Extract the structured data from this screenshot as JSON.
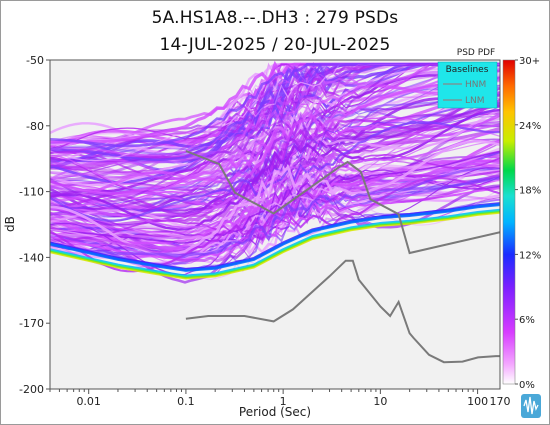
{
  "title": "5A.HS1A8.--.DH3 : 279 PSDs",
  "subtitle": "14-JUL-2025 / 20-JUL-2025",
  "chart_data": {
    "type": "heatmap",
    "xlabel": "Period (Sec)",
    "ylabel": "dB",
    "x_scale": "log",
    "xlim": [
      0.004,
      170
    ],
    "ylim": [
      -200,
      -50
    ],
    "x_ticks": [
      {
        "value": 0.01,
        "label": "0.01"
      },
      {
        "value": 0.1,
        "label": "0.1"
      },
      {
        "value": 1,
        "label": "1"
      },
      {
        "value": 10,
        "label": "10"
      },
      {
        "value": 100,
        "label": "100"
      },
      {
        "value": 170,
        "label": "170"
      }
    ],
    "y_ticks": [
      -50,
      -80,
      -110,
      -140,
      -170,
      -200
    ],
    "colorbar": {
      "title": "PSD PDF",
      "ticks": [
        "0%",
        "6%",
        "12%",
        "18%",
        "24%",
        "30+"
      ]
    },
    "legend": {
      "title": "Baselines",
      "entries": [
        "HNM",
        "LNM"
      ],
      "placement": "top-right"
    },
    "series": [
      {
        "name": "HNM",
        "x": [
          0.1,
          0.22,
          0.32,
          0.8,
          3.8,
          4.6,
          6.3,
          7.9,
          15.4,
          20,
          170
        ],
        "y": [
          -91.5,
          -97.4,
          -110.5,
          -120,
          -98.7,
          -96.5,
          -101,
          -113.5,
          -120.3,
          -138,
          -128.5
        ]
      },
      {
        "name": "LNM",
        "x": [
          0.1,
          0.17,
          0.4,
          0.8,
          1.26,
          3,
          4.4,
          5.2,
          6,
          10,
          12.6,
          15.4,
          20,
          21.9,
          31.6,
          45,
          70,
          101,
          154,
          170
        ],
        "y": [
          -168,
          -166.7,
          -166.7,
          -169.2,
          -163.7,
          -148.6,
          -141.5,
          -141.5,
          -150.2,
          -162.4,
          -166.7,
          -160.3,
          -174.6,
          -176.7,
          -184.4,
          -187.8,
          -187.5,
          -185.6,
          -185,
          -185
        ]
      },
      {
        "name": "PSD mode",
        "x": [
          0.004,
          0.01,
          0.02,
          0.05,
          0.1,
          0.2,
          0.5,
          1,
          2,
          5,
          10,
          20,
          50,
          100,
          170
        ],
        "y": [
          -137,
          -141,
          -144,
          -147,
          -149,
          -148,
          -144,
          -137,
          -131,
          -127,
          -125,
          -124,
          -122,
          -120,
          -119
        ]
      }
    ]
  }
}
